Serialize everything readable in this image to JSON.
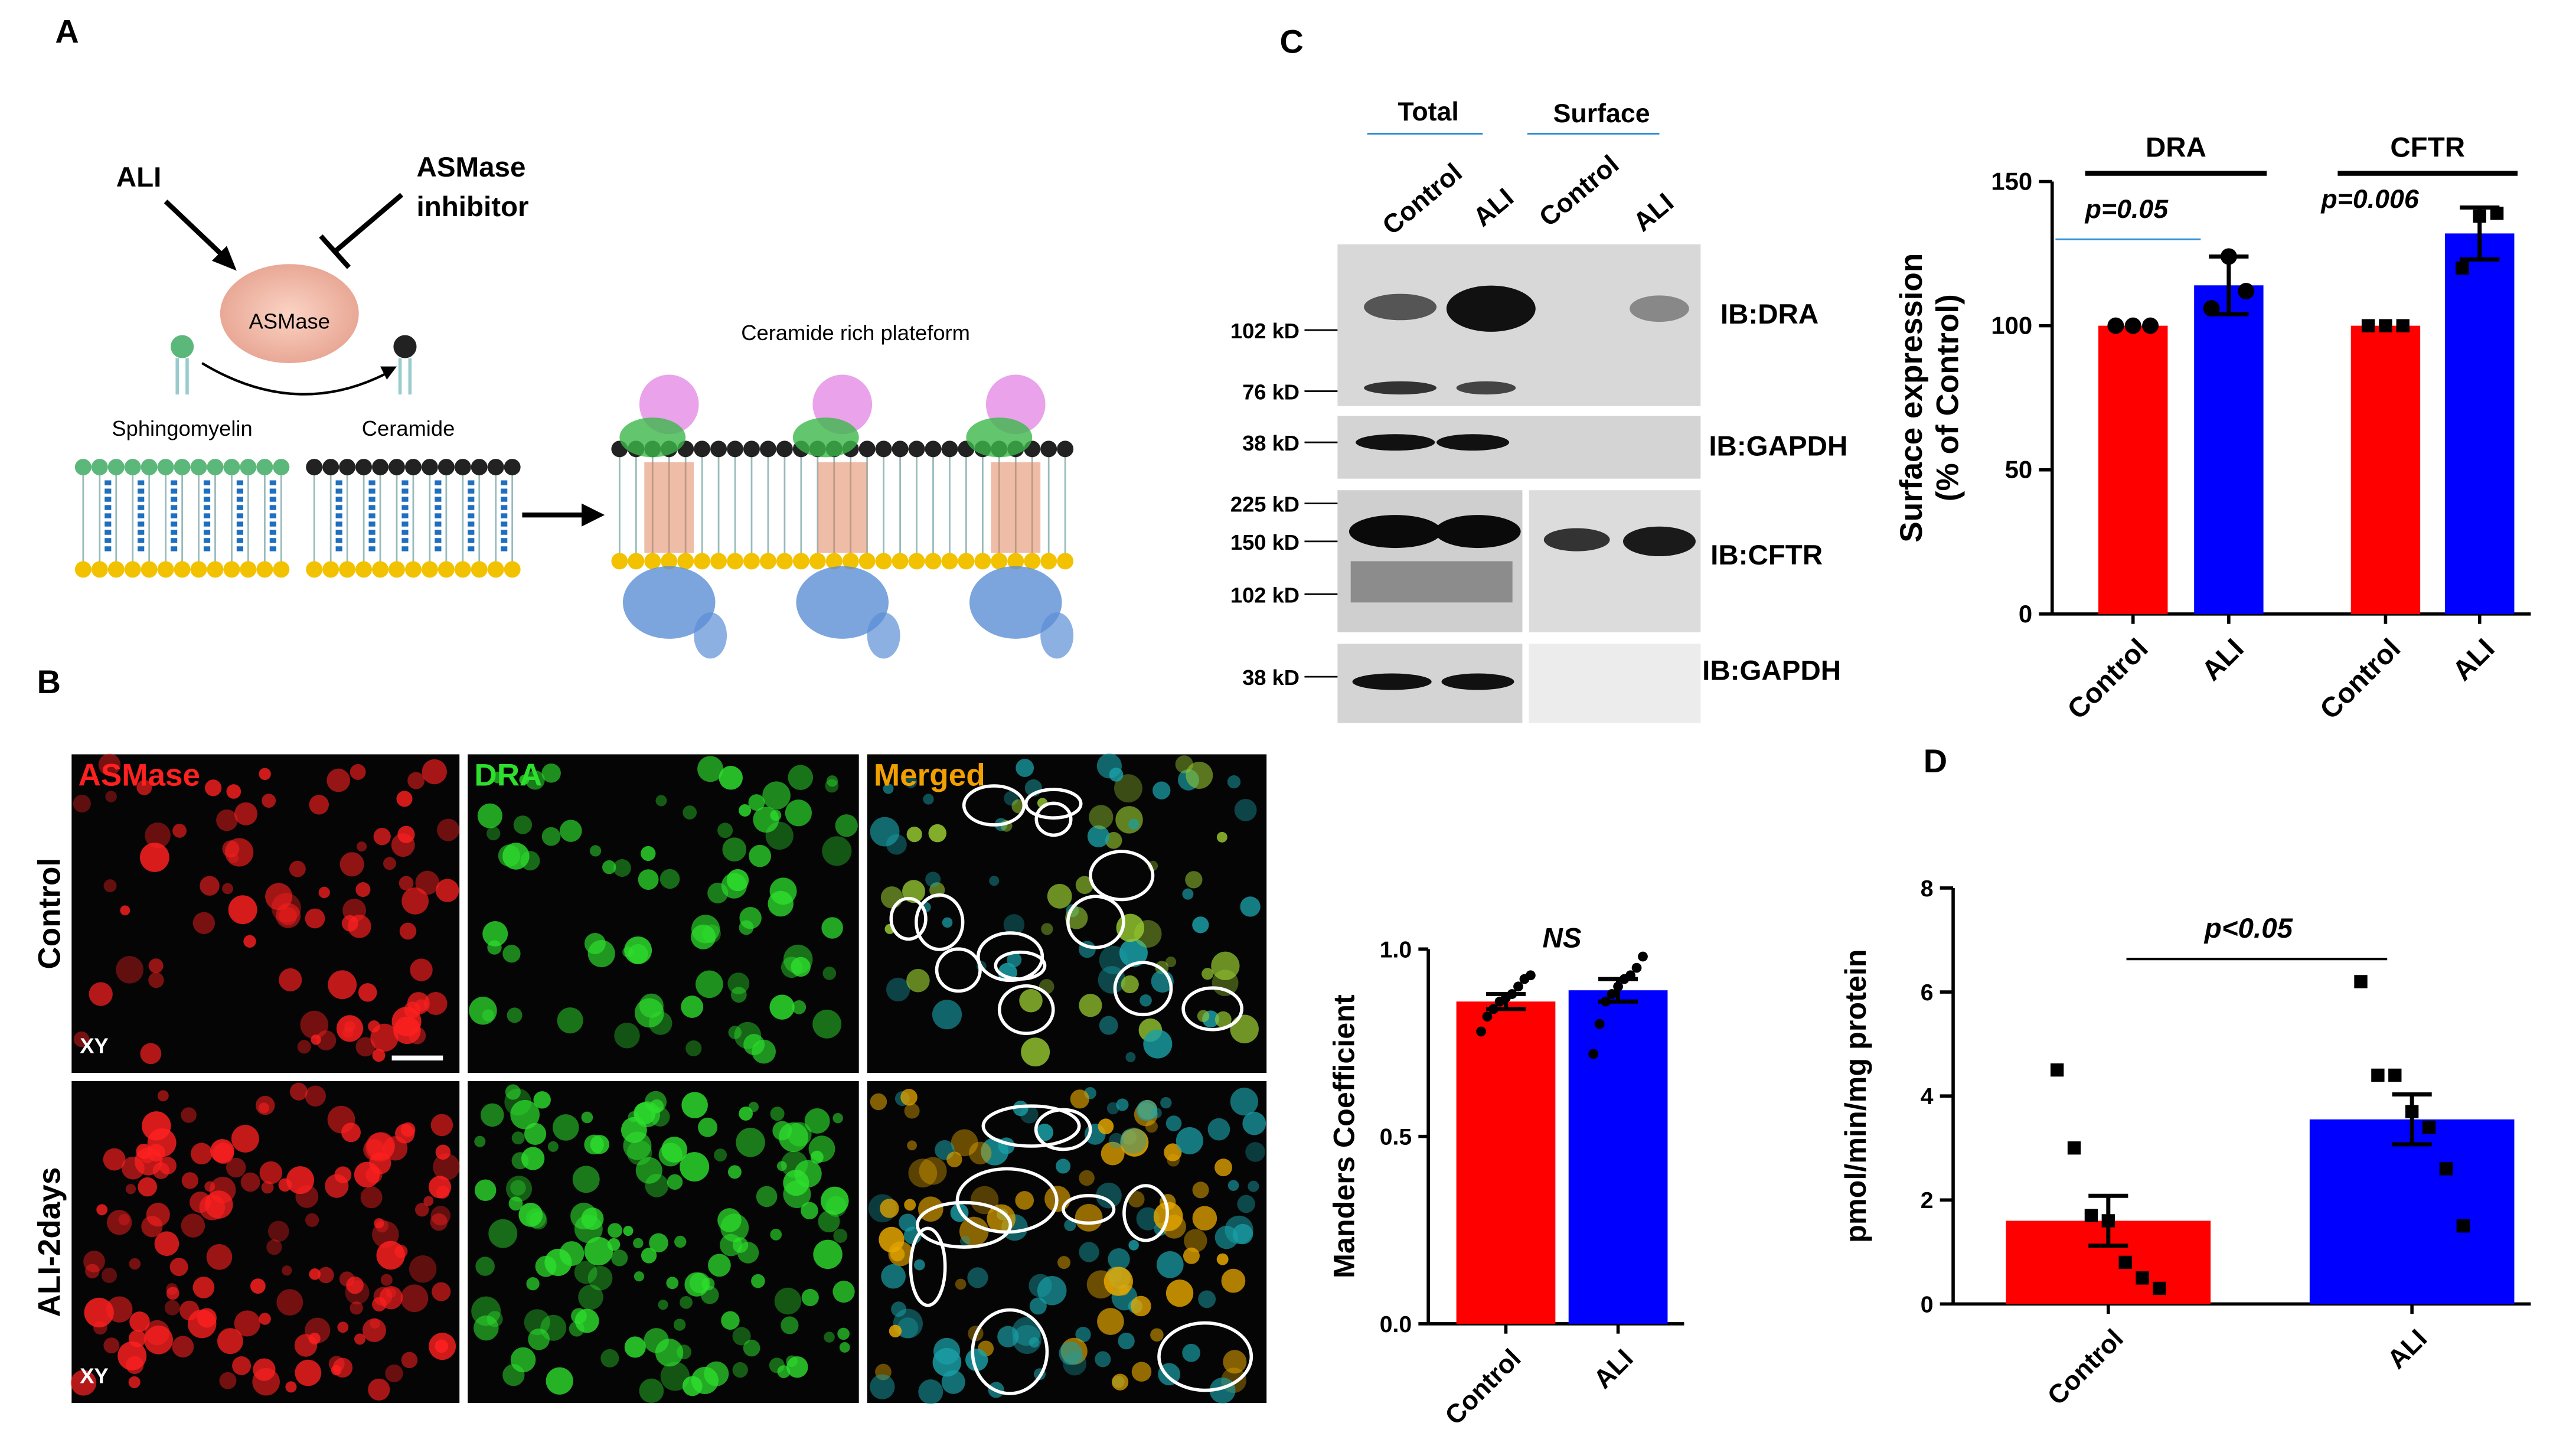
{
  "panels": {
    "a": "A",
    "b": "B",
    "c": "C",
    "d": "D"
  },
  "diagram": {
    "stimulus": "ALI",
    "inhibitor": [
      "ASMase",
      "inhibitor"
    ],
    "enzyme": "ASMase",
    "substrate": "Sphingomyelin",
    "product": "Ceramide",
    "platform": "Ceramide rich plateform"
  },
  "blot": {
    "headers": [
      "Total",
      "Surface"
    ],
    "lanes": [
      "Control",
      "ALI",
      "Control",
      "ALI"
    ],
    "markers": [
      "102 kD",
      "76 kD",
      "38 kD",
      "225 kD",
      "150 kD",
      "102 kD",
      "38 kD"
    ],
    "probes": [
      "IB:DRA",
      "IB:GAPDH",
      "IB:CFTR",
      "IB:GAPDH"
    ]
  },
  "microscopy": {
    "channels": [
      "ASMase",
      "DRA",
      "Merged"
    ],
    "rows": [
      "Control",
      "ALI-2days"
    ],
    "plane": "XY"
  },
  "chart_data": [
    {
      "type": "bar",
      "ylabel": [
        "Surface expression",
        "(% of Control)"
      ],
      "ylim": [
        0,
        150
      ],
      "yticks": [
        0,
        50,
        100,
        150
      ],
      "categories": [
        "Control",
        "ALI",
        "Control",
        "ALI"
      ],
      "colors": [
        "#ff0000",
        "#0000ff",
        "#ff0000",
        "#0000ff"
      ],
      "values": [
        100,
        114,
        100,
        132
      ],
      "errors": [
        null,
        10,
        null,
        9
      ],
      "points": [
        [
          100,
          100,
          100
        ],
        [
          106,
          124,
          112
        ],
        [
          100,
          100,
          100
        ],
        [
          120,
          138,
          139
        ]
      ],
      "markers": [
        "circle",
        "circle",
        "square",
        "square"
      ],
      "groups": [
        {
          "name": "DRA",
          "annotation": "p=0.05"
        },
        {
          "name": "CFTR",
          "annotation": "p=0.006"
        }
      ]
    },
    {
      "type": "bar",
      "ylabel": [
        "Manders Coefficient"
      ],
      "ylim": [
        0,
        1.0
      ],
      "yticks": [
        {
          "value": 0,
          "label": "0.0"
        },
        {
          "value": 0.5,
          "label": "0.5"
        },
        {
          "value": 1,
          "label": "1.0"
        }
      ],
      "categories": [
        "Control",
        "ALI"
      ],
      "colors": [
        "#ff0000",
        "#0000ff"
      ],
      "values": [
        0.86,
        0.89
      ],
      "errors": [
        0.02,
        0.03
      ],
      "points": [
        [
          0.78,
          0.82,
          0.84,
          0.86,
          0.87,
          0.88,
          0.9,
          0.92,
          0.93
        ],
        [
          0.72,
          0.8,
          0.86,
          0.88,
          0.9,
          0.92,
          0.93,
          0.95,
          0.98
        ]
      ],
      "markers": [
        "circle",
        "circle"
      ],
      "annotation": "NS"
    },
    {
      "type": "bar",
      "ylabel": [
        "pmol/min/mg protein"
      ],
      "ylim": [
        0,
        8
      ],
      "yticks": [
        0,
        2,
        4,
        6,
        8
      ],
      "categories": [
        "Control",
        "ALI"
      ],
      "colors": [
        "#ff0000",
        "#0000ff"
      ],
      "values": [
        1.6,
        3.55
      ],
      "errors": [
        0.48,
        0.48
      ],
      "points": [
        [
          4.5,
          3.0,
          1.7,
          1.6,
          0.8,
          0.5,
          0.3
        ],
        [
          6.2,
          4.4,
          4.4,
          3.7,
          3.4,
          2.6,
          1.5
        ]
      ],
      "markers": [
        "square",
        "square"
      ],
      "annotation": "p<0.05"
    }
  ]
}
